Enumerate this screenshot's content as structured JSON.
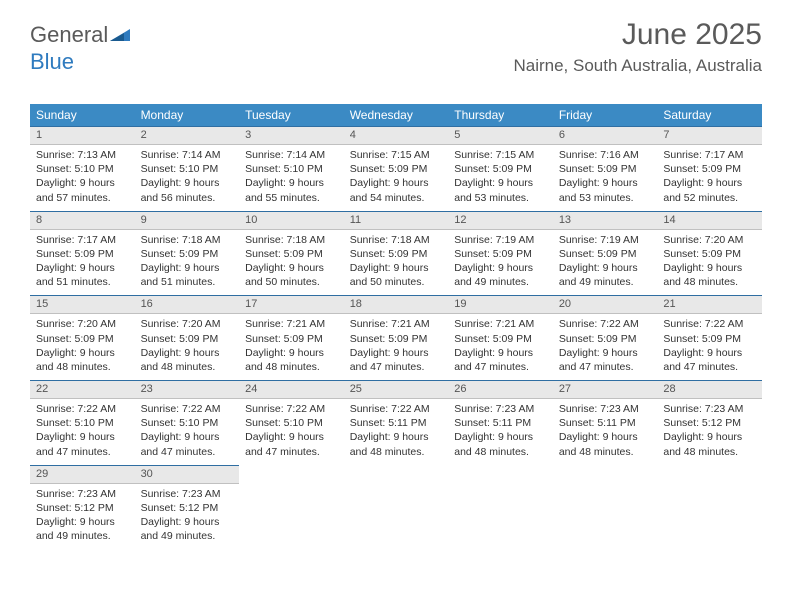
{
  "logo": {
    "text1": "General",
    "text2": "Blue"
  },
  "title": "June 2025",
  "location": "Nairne, South Australia, Australia",
  "headers": [
    "Sunday",
    "Monday",
    "Tuesday",
    "Wednesday",
    "Thursday",
    "Friday",
    "Saturday"
  ],
  "colors": {
    "header_bg": "#3b8ac4",
    "header_text": "#ffffff",
    "daynum_bg": "#e8e8e8",
    "daynum_border_top": "#2f6ea2",
    "logo_gray": "#5a5a5a",
    "logo_blue": "#2f7bbf"
  },
  "weeks": [
    [
      {
        "n": "1",
        "sr": "7:13 AM",
        "ss": "5:10 PM",
        "dl": "9 hours and 57 minutes."
      },
      {
        "n": "2",
        "sr": "7:14 AM",
        "ss": "5:10 PM",
        "dl": "9 hours and 56 minutes."
      },
      {
        "n": "3",
        "sr": "7:14 AM",
        "ss": "5:10 PM",
        "dl": "9 hours and 55 minutes."
      },
      {
        "n": "4",
        "sr": "7:15 AM",
        "ss": "5:09 PM",
        "dl": "9 hours and 54 minutes."
      },
      {
        "n": "5",
        "sr": "7:15 AM",
        "ss": "5:09 PM",
        "dl": "9 hours and 53 minutes."
      },
      {
        "n": "6",
        "sr": "7:16 AM",
        "ss": "5:09 PM",
        "dl": "9 hours and 53 minutes."
      },
      {
        "n": "7",
        "sr": "7:17 AM",
        "ss": "5:09 PM",
        "dl": "9 hours and 52 minutes."
      }
    ],
    [
      {
        "n": "8",
        "sr": "7:17 AM",
        "ss": "5:09 PM",
        "dl": "9 hours and 51 minutes."
      },
      {
        "n": "9",
        "sr": "7:18 AM",
        "ss": "5:09 PM",
        "dl": "9 hours and 51 minutes."
      },
      {
        "n": "10",
        "sr": "7:18 AM",
        "ss": "5:09 PM",
        "dl": "9 hours and 50 minutes."
      },
      {
        "n": "11",
        "sr": "7:18 AM",
        "ss": "5:09 PM",
        "dl": "9 hours and 50 minutes."
      },
      {
        "n": "12",
        "sr": "7:19 AM",
        "ss": "5:09 PM",
        "dl": "9 hours and 49 minutes."
      },
      {
        "n": "13",
        "sr": "7:19 AM",
        "ss": "5:09 PM",
        "dl": "9 hours and 49 minutes."
      },
      {
        "n": "14",
        "sr": "7:20 AM",
        "ss": "5:09 PM",
        "dl": "9 hours and 48 minutes."
      }
    ],
    [
      {
        "n": "15",
        "sr": "7:20 AM",
        "ss": "5:09 PM",
        "dl": "9 hours and 48 minutes."
      },
      {
        "n": "16",
        "sr": "7:20 AM",
        "ss": "5:09 PM",
        "dl": "9 hours and 48 minutes."
      },
      {
        "n": "17",
        "sr": "7:21 AM",
        "ss": "5:09 PM",
        "dl": "9 hours and 48 minutes."
      },
      {
        "n": "18",
        "sr": "7:21 AM",
        "ss": "5:09 PM",
        "dl": "9 hours and 47 minutes."
      },
      {
        "n": "19",
        "sr": "7:21 AM",
        "ss": "5:09 PM",
        "dl": "9 hours and 47 minutes."
      },
      {
        "n": "20",
        "sr": "7:22 AM",
        "ss": "5:09 PM",
        "dl": "9 hours and 47 minutes."
      },
      {
        "n": "21",
        "sr": "7:22 AM",
        "ss": "5:09 PM",
        "dl": "9 hours and 47 minutes."
      }
    ],
    [
      {
        "n": "22",
        "sr": "7:22 AM",
        "ss": "5:10 PM",
        "dl": "9 hours and 47 minutes."
      },
      {
        "n": "23",
        "sr": "7:22 AM",
        "ss": "5:10 PM",
        "dl": "9 hours and 47 minutes."
      },
      {
        "n": "24",
        "sr": "7:22 AM",
        "ss": "5:10 PM",
        "dl": "9 hours and 47 minutes."
      },
      {
        "n": "25",
        "sr": "7:22 AM",
        "ss": "5:11 PM",
        "dl": "9 hours and 48 minutes."
      },
      {
        "n": "26",
        "sr": "7:23 AM",
        "ss": "5:11 PM",
        "dl": "9 hours and 48 minutes."
      },
      {
        "n": "27",
        "sr": "7:23 AM",
        "ss": "5:11 PM",
        "dl": "9 hours and 48 minutes."
      },
      {
        "n": "28",
        "sr": "7:23 AM",
        "ss": "5:12 PM",
        "dl": "9 hours and 48 minutes."
      }
    ],
    [
      {
        "n": "29",
        "sr": "7:23 AM",
        "ss": "5:12 PM",
        "dl": "9 hours and 49 minutes."
      },
      {
        "n": "30",
        "sr": "7:23 AM",
        "ss": "5:12 PM",
        "dl": "9 hours and 49 minutes."
      },
      null,
      null,
      null,
      null,
      null
    ]
  ],
  "labels": {
    "sunrise": "Sunrise: ",
    "sunset": "Sunset: ",
    "daylight": "Daylight: "
  }
}
